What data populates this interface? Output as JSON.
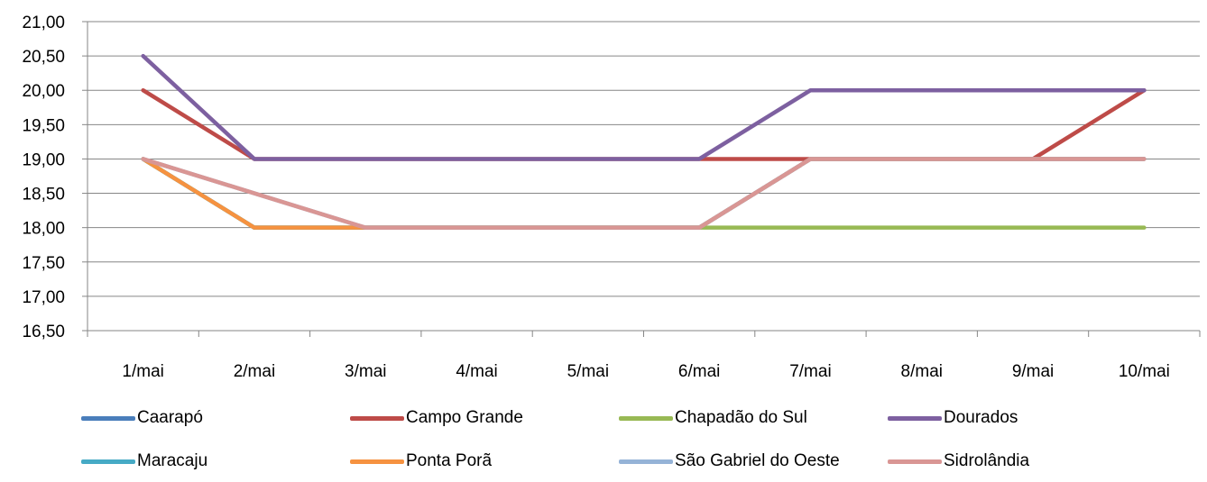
{
  "chart_data": {
    "type": "line",
    "categories": [
      "1/mai",
      "2/mai",
      "3/mai",
      "4/mai",
      "5/mai",
      "6/mai",
      "7/mai",
      "8/mai",
      "9/mai",
      "10/mai"
    ],
    "ylim": [
      16.5,
      21.0
    ],
    "yticks": [
      "16,50",
      "17,00",
      "17,50",
      "18,00",
      "18,50",
      "19,00",
      "19,50",
      "20,00",
      "20,50",
      "21,00"
    ],
    "grid": true,
    "legend_position": "bottom",
    "series": [
      {
        "name": "Caarapó",
        "color": "#4a7ebb",
        "values": [
          19,
          18,
          18,
          18,
          18,
          18,
          19,
          19,
          19,
          19
        ]
      },
      {
        "name": "Campo Grande",
        "color": "#be4b48",
        "values": [
          20,
          19,
          19,
          19,
          19,
          19,
          19,
          19,
          19,
          20
        ]
      },
      {
        "name": "Chapadão do Sul",
        "color": "#98b954",
        "values": [
          19,
          18,
          18,
          18,
          18,
          18,
          18,
          18,
          18,
          18
        ]
      },
      {
        "name": "Dourados",
        "color": "#7d60a0",
        "values": [
          20.5,
          19,
          19,
          19,
          19,
          19,
          20,
          20,
          20,
          20
        ]
      },
      {
        "name": "Maracaju",
        "color": "#46aac5",
        "values": [
          19,
          18,
          18,
          18,
          18,
          18,
          19,
          19,
          19,
          19
        ]
      },
      {
        "name": "Ponta Porã",
        "color": "#f69240",
        "values": [
          19,
          18,
          18,
          18,
          18,
          18,
          19,
          19,
          19,
          19
        ]
      },
      {
        "name": "São Gabriel do Oeste",
        "color": "#95b3d7",
        "values": [
          19,
          18.5,
          18,
          18,
          18,
          18,
          19,
          19,
          19,
          19
        ]
      },
      {
        "name": "Sidrolândia",
        "color": "#d99694",
        "values": [
          19,
          18.5,
          18,
          18,
          18,
          18,
          19,
          19,
          19,
          19
        ]
      }
    ]
  }
}
